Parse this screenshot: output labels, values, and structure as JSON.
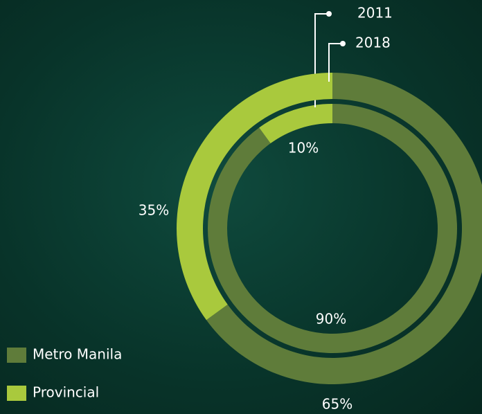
{
  "chart_data": {
    "type": "donut",
    "categories": [
      "Metro Manila",
      "Provincial"
    ],
    "colors": [
      "#5f7c3a",
      "#a9c93d"
    ],
    "series": [
      {
        "name": "2011",
        "values": [
          90,
          10
        ],
        "value_labels": [
          "90%",
          "10%"
        ]
      },
      {
        "name": "2018",
        "values": [
          65,
          35
        ],
        "value_labels": [
          "65%",
          "35%"
        ]
      }
    ]
  }
}
